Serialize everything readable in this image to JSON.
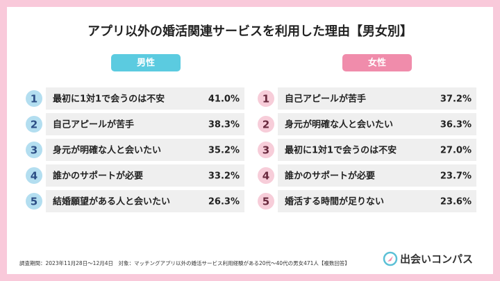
{
  "title": "アプリ以外の婚活関連サービスを利用した理由【男女別】",
  "panels": [
    {
      "label": "男性",
      "items": [
        {
          "rank": "1",
          "text": "最初に1対1で会うのは不安",
          "value": "41.0%"
        },
        {
          "rank": "2",
          "text": "自己アピールが苦手",
          "value": "38.3%"
        },
        {
          "rank": "3",
          "text": "身元が明確な人と会いたい",
          "value": "35.2%"
        },
        {
          "rank": "4",
          "text": "誰かのサポートが必要",
          "value": "33.2%"
        },
        {
          "rank": "5",
          "text": "結婚願望がある人と会いたい",
          "value": "26.3%"
        }
      ]
    },
    {
      "label": "女性",
      "items": [
        {
          "rank": "1",
          "text": "自己アピールが苦手",
          "value": "37.2%"
        },
        {
          "rank": "2",
          "text": "身元が明確な人と会いたい",
          "value": "36.3%"
        },
        {
          "rank": "3",
          "text": "最初に1対1で会うのは不安",
          "value": "27.0%"
        },
        {
          "rank": "4",
          "text": "誰かのサポートが必要",
          "value": "23.7%"
        },
        {
          "rank": "5",
          "text": "婚活する時間が足りない",
          "value": "23.6%"
        }
      ]
    }
  ],
  "footer": "調査期間：2023年11月28日〜12月4日　対象：マッチングアプリ以外の婚活サービス利用経験がある20代〜40代の男女471人【複数回答】",
  "logo": "出会いコンパス"
}
